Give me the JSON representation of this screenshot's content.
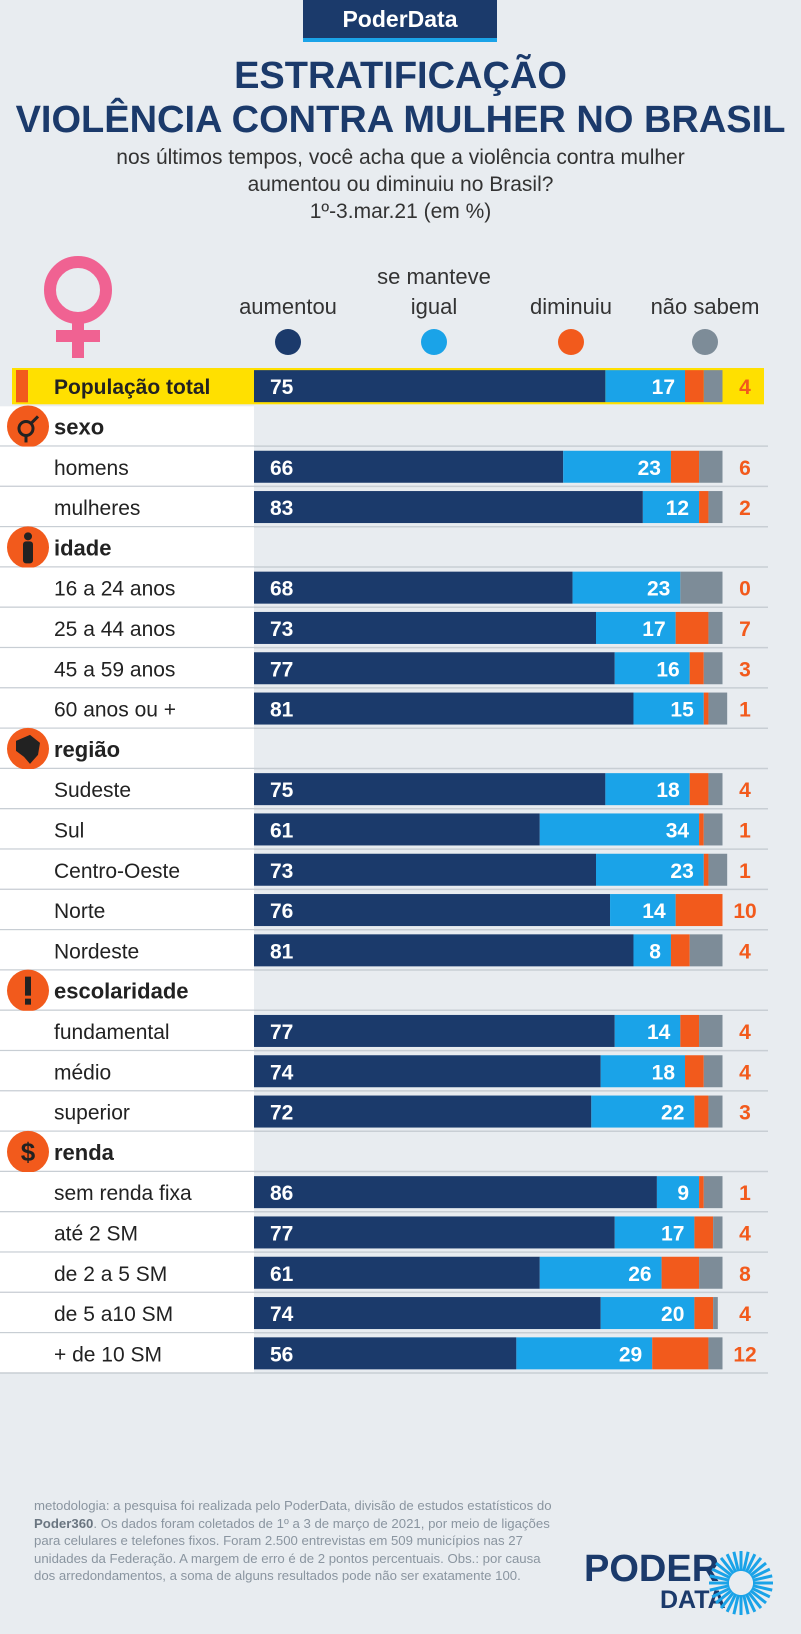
{
  "brand": "PoderData",
  "title_line1": "ESTRATIFICAÇÃO",
  "title_line2": "VIOLÊNCIA CONTRA MULHER NO BRASIL",
  "subtitle_line1": "nos últimos tempos, você acha que a violência contra mulher",
  "subtitle_line2": "aumentou ou diminuiu no Brasil?",
  "subtitle_line3": "1º-3.mar.21 (em %)",
  "legend": [
    {
      "line1": "",
      "line2": "aumentou",
      "color": "#1b3a6b"
    },
    {
      "line1": "se manteve",
      "line2": "igual",
      "color": "#1aa3e8"
    },
    {
      "line1": "",
      "line2": "diminuiu",
      "color": "#f25a1c"
    },
    {
      "line1": "",
      "line2": "não sabem",
      "color": "#7d8c98"
    }
  ],
  "colors": {
    "aumentou": "#1b3a6b",
    "igual": "#1aa3e8",
    "diminuiu": "#f25a1c",
    "nao_sabem": "#7d8c98",
    "highlight": "#ffe000",
    "icon": "#f25a1c",
    "female_symbol": "#f06292"
  },
  "chart_data": {
    "type": "bar",
    "stacked": true,
    "horizontal": true,
    "series": [
      {
        "name": "aumentou"
      },
      {
        "name": "se manteve igual"
      },
      {
        "name": "diminuiu"
      },
      {
        "name": "não sabem"
      }
    ],
    "rows": [
      {
        "kind": "total",
        "label": "População total",
        "values": [
          75,
          17,
          4,
          4
        ]
      },
      {
        "kind": "group",
        "label": "sexo",
        "icon": "gender-icon"
      },
      {
        "kind": "data",
        "label": "homens",
        "values": [
          66,
          23,
          6,
          5
        ]
      },
      {
        "kind": "data",
        "label": "mulheres",
        "values": [
          83,
          12,
          2,
          3
        ]
      },
      {
        "kind": "group",
        "label": "idade",
        "icon": "person-icon"
      },
      {
        "kind": "data",
        "label": "16 a 24 anos",
        "values": [
          68,
          23,
          0,
          9
        ]
      },
      {
        "kind": "data",
        "label": "25 a 44 anos",
        "values": [
          73,
          17,
          7,
          3
        ]
      },
      {
        "kind": "data",
        "label": "45 a 59 anos",
        "values": [
          77,
          16,
          3,
          4
        ]
      },
      {
        "kind": "data",
        "label": "60 anos ou +",
        "values": [
          81,
          15,
          1,
          4
        ]
      },
      {
        "kind": "group",
        "label": "região",
        "icon": "brazil-map-icon"
      },
      {
        "kind": "data",
        "label": "Sudeste",
        "values": [
          75,
          18,
          4,
          3
        ]
      },
      {
        "kind": "data",
        "label": "Sul",
        "values": [
          61,
          34,
          1,
          4
        ]
      },
      {
        "kind": "data",
        "label": "Centro-Oeste",
        "values": [
          73,
          23,
          1,
          4
        ]
      },
      {
        "kind": "data",
        "label": "Norte",
        "values": [
          76,
          14,
          10,
          0
        ]
      },
      {
        "kind": "data",
        "label": "Nordeste",
        "values": [
          81,
          8,
          4,
          7
        ]
      },
      {
        "kind": "group",
        "label": "escolaridade",
        "icon": "exclamation-icon"
      },
      {
        "kind": "data",
        "label": "fundamental",
        "values": [
          77,
          14,
          4,
          5
        ]
      },
      {
        "kind": "data",
        "label": "médio",
        "values": [
          74,
          18,
          4,
          4
        ]
      },
      {
        "kind": "data",
        "label": "superior",
        "values": [
          72,
          22,
          3,
          3
        ]
      },
      {
        "kind": "group",
        "label": "renda",
        "icon": "dollar-icon"
      },
      {
        "kind": "data",
        "label": "sem renda fixa",
        "values": [
          86,
          9,
          1,
          4
        ]
      },
      {
        "kind": "data",
        "label": "até 2 SM",
        "values": [
          77,
          17,
          4,
          2
        ]
      },
      {
        "kind": "data",
        "label": "de 2 a 5 SM",
        "values": [
          61,
          26,
          8,
          5
        ]
      },
      {
        "kind": "data",
        "label": "de 5 a10 SM",
        "values": [
          74,
          20,
          4,
          1
        ]
      },
      {
        "kind": "data",
        "label": "+ de 10 SM",
        "values": [
          56,
          29,
          12,
          3
        ]
      }
    ]
  },
  "methodology_prefix": "metodologia: a pesquisa foi realizada pelo PoderData, divisão de estudos estatísticos do ",
  "methodology_bold": "Poder360",
  "methodology_suffix": ". Os dados foram coletados de 1º a 3 de março de 2021, por meio de ligações para celulares e telefones fixos. Foram 2.500 entrevistas em 509 municípios nas 27 unidades da Federação. A margem de erro é de 2 pontos percentuais. Obs.: por causa dos arredondamentos, a soma de alguns resultados pode não ser exatamente 100.",
  "logo_line1": "PODER",
  "logo_line2": "DATA"
}
